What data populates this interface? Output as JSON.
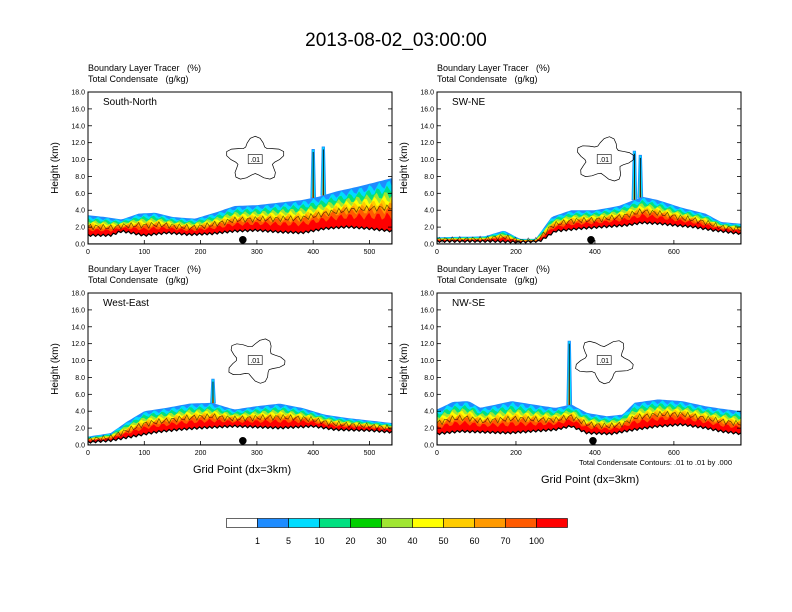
{
  "title": "2013-08-02_03:00:00",
  "var_line1": "Boundary Layer Tracer   (%)",
  "var_line2": "Total Condensate   (g/kg)",
  "ylabel": "Height (km)",
  "xlabel": "Grid Point (dx=3km)",
  "contour_note": "Total Condensate Contours: .01 to .01 by .000",
  "contour_label": ".01",
  "colors": [
    "#ffffff",
    "#1e8cff",
    "#00dcff",
    "#00e080",
    "#00d000",
    "#a0e632",
    "#ffff00",
    "#ffcc00",
    "#ff9900",
    "#ff5a00",
    "#ff0000"
  ],
  "colorbar_labels": [
    "1",
    "5",
    "10",
    "20",
    "30",
    "40",
    "50",
    "60",
    "70",
    "100"
  ],
  "chart_data": [
    {
      "type": "heatmap",
      "panel_label": "South-North",
      "xlim": [
        0,
        540
      ],
      "ylim": [
        0,
        18
      ],
      "xticks": [
        "0",
        "100",
        "200",
        "300",
        "400",
        "500"
      ],
      "yticks": [
        "0.0",
        "2.0",
        "4.0",
        "6.0",
        "8.0",
        "10.0",
        "12.0",
        "14.0",
        "16.0",
        "18.0"
      ],
      "terrain_km": [
        [
          0,
          1.0
        ],
        [
          40,
          1.0
        ],
        [
          60,
          1.5
        ],
        [
          100,
          1.0
        ],
        [
          140,
          1.3
        ],
        [
          180,
          1.1
        ],
        [
          220,
          1.2
        ],
        [
          260,
          1.5
        ],
        [
          300,
          1.6
        ],
        [
          340,
          1.4
        ],
        [
          380,
          1.3
        ],
        [
          420,
          1.8
        ],
        [
          460,
          2.0
        ],
        [
          500,
          1.8
        ],
        [
          540,
          1.5
        ]
      ],
      "layer_top_km": [
        [
          0,
          3.4
        ],
        [
          30,
          3.2
        ],
        [
          60,
          2.9
        ],
        [
          90,
          3.6
        ],
        [
          120,
          3.7
        ],
        [
          150,
          3.2
        ],
        [
          190,
          3.0
        ],
        [
          230,
          3.8
        ],
        [
          260,
          4.5
        ],
        [
          300,
          4.6
        ],
        [
          340,
          4.9
        ],
        [
          380,
          5.2
        ],
        [
          410,
          5.6
        ],
        [
          440,
          6.2
        ],
        [
          480,
          6.8
        ],
        [
          540,
          7.8
        ]
      ],
      "plumes": [
        [
          400,
          11.2
        ],
        [
          418,
          11.5
        ]
      ],
      "marker_x": 275
    },
    {
      "type": "heatmap",
      "panel_label": "SW-NE",
      "xlim": [
        0,
        770
      ],
      "ylim": [
        0,
        18
      ],
      "xticks": [
        "0",
        "200",
        "400",
        "600"
      ],
      "yticks": [
        "0.0",
        "2.0",
        "4.0",
        "6.0",
        "8.0",
        "10.0",
        "12.0",
        "14.0",
        "16.0",
        "18.0"
      ],
      "terrain_km": [
        [
          0,
          0.3
        ],
        [
          100,
          0.3
        ],
        [
          150,
          0.3
        ],
        [
          200,
          0.2
        ],
        [
          260,
          0.3
        ],
        [
          300,
          1.5
        ],
        [
          360,
          1.8
        ],
        [
          420,
          2.0
        ],
        [
          480,
          2.2
        ],
        [
          520,
          2.5
        ],
        [
          560,
          2.4
        ],
        [
          600,
          2.2
        ],
        [
          650,
          2.0
        ],
        [
          700,
          1.6
        ],
        [
          770,
          1.2
        ]
      ],
      "layer_top_km": [
        [
          0,
          0.8
        ],
        [
          120,
          0.9
        ],
        [
          170,
          1.6
        ],
        [
          210,
          0.6
        ],
        [
          250,
          0.6
        ],
        [
          290,
          3.2
        ],
        [
          340,
          4.0
        ],
        [
          400,
          4.0
        ],
        [
          460,
          4.5
        ],
        [
          520,
          5.6
        ],
        [
          560,
          5.2
        ],
        [
          620,
          4.3
        ],
        [
          680,
          3.6
        ],
        [
          720,
          2.6
        ],
        [
          770,
          2.4
        ]
      ],
      "plumes": [
        [
          500,
          11.0
        ],
        [
          515,
          10.5
        ]
      ],
      "marker_x": 390
    },
    {
      "type": "heatmap",
      "panel_label": "West-East",
      "xlim": [
        0,
        540
      ],
      "ylim": [
        0,
        18
      ],
      "xticks": [
        "0",
        "100",
        "200",
        "300",
        "400",
        "500"
      ],
      "yticks": [
        "0.0",
        "2.0",
        "4.0",
        "6.0",
        "8.0",
        "10.0",
        "12.0",
        "14.0",
        "16.0",
        "18.0"
      ],
      "terrain_km": [
        [
          0,
          0.3
        ],
        [
          40,
          0.5
        ],
        [
          80,
          1.0
        ],
        [
          120,
          1.5
        ],
        [
          160,
          1.8
        ],
        [
          200,
          2.0
        ],
        [
          260,
          2.2
        ],
        [
          300,
          2.1
        ],
        [
          340,
          2.0
        ],
        [
          400,
          2.2
        ],
        [
          440,
          1.8
        ],
        [
          500,
          1.7
        ],
        [
          540,
          1.5
        ]
      ],
      "layer_top_km": [
        [
          0,
          1.0
        ],
        [
          40,
          1.4
        ],
        [
          70,
          2.8
        ],
        [
          100,
          4.0
        ],
        [
          140,
          4.4
        ],
        [
          180,
          4.9
        ],
        [
          220,
          5.0
        ],
        [
          260,
          4.2
        ],
        [
          300,
          4.6
        ],
        [
          340,
          4.9
        ],
        [
          380,
          4.4
        ],
        [
          420,
          3.6
        ],
        [
          460,
          3.2
        ],
        [
          500,
          2.9
        ],
        [
          540,
          2.6
        ]
      ],
      "plumes": [
        [
          222,
          7.8
        ]
      ],
      "marker_x": 275
    },
    {
      "type": "heatmap",
      "panel_label": "NW-SE",
      "xlim": [
        0,
        770
      ],
      "ylim": [
        0,
        18
      ],
      "xticks": [
        "0",
        "200",
        "400",
        "600"
      ],
      "yticks": [
        "0.0",
        "2.0",
        "4.0",
        "6.0",
        "8.0",
        "10.0",
        "12.0",
        "14.0",
        "16.0",
        "18.0"
      ],
      "terrain_km": [
        [
          0,
          1.3
        ],
        [
          60,
          1.6
        ],
        [
          120,
          1.5
        ],
        [
          180,
          1.4
        ],
        [
          240,
          1.6
        ],
        [
          300,
          1.8
        ],
        [
          340,
          2.2
        ],
        [
          380,
          1.4
        ],
        [
          440,
          1.3
        ],
        [
          500,
          1.8
        ],
        [
          560,
          2.2
        ],
        [
          620,
          2.4
        ],
        [
          680,
          2.0
        ],
        [
          720,
          1.6
        ],
        [
          770,
          1.3
        ]
      ],
      "layer_top_km": [
        [
          0,
          4.2
        ],
        [
          40,
          5.1
        ],
        [
          80,
          5.2
        ],
        [
          110,
          4.4
        ],
        [
          150,
          4.8
        ],
        [
          190,
          5.2
        ],
        [
          230,
          4.9
        ],
        [
          270,
          4.6
        ],
        [
          300,
          4.4
        ],
        [
          340,
          4.8
        ],
        [
          380,
          3.8
        ],
        [
          430,
          3.4
        ],
        [
          470,
          3.6
        ],
        [
          500,
          5.0
        ],
        [
          560,
          5.4
        ],
        [
          620,
          5.2
        ],
        [
          680,
          4.6
        ],
        [
          720,
          4.3
        ],
        [
          770,
          4.0
        ]
      ],
      "plumes": [
        [
          335,
          12.3
        ]
      ],
      "marker_x": 395
    }
  ]
}
